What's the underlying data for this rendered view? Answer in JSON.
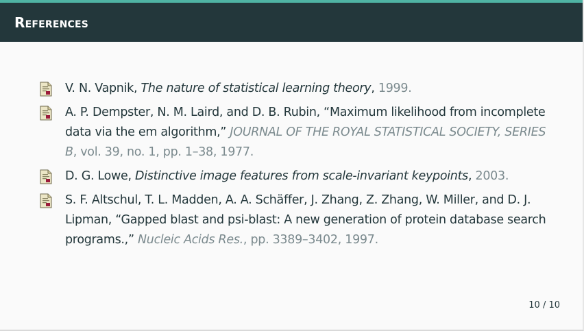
{
  "header": {
    "title": "References"
  },
  "references": [
    {
      "authors": "V. N. Vapnik,",
      "title": "The nature of statistical learning theory",
      "sep": ",",
      "details": "1999."
    },
    {
      "authors": "A. P. Dempster, N. M. Laird, and D. B. Rubin, “Maximum likelihood from incomplete data via the em algorithm,”",
      "venue": "JOURNAL OF THE ROYAL STATISTICAL SOCIETY, SERIES B",
      "details": ", vol. 39, no. 1, pp. 1–38, 1977."
    },
    {
      "authors": "D. G. Lowe,",
      "title": "Distinctive image features from scale-invariant keypoints",
      "sep": ",",
      "details": "2003."
    },
    {
      "authors": "S. F. Altschul, T. L. Madden, A. A. Schäffer, J. Zhang, Z. Zhang, W. Miller, and D. J. Lipman, “Gapped blast and psi-blast: A new generation of protein database search programs.,”",
      "venue": "Nucleic Acids Res.",
      "details": ", pp. 3389–3402, 1997."
    }
  ],
  "footer": {
    "page": "10 / 10"
  },
  "icons": [
    "document-icon"
  ],
  "colors": {
    "header_bg": "#23373b",
    "accent": "#4fb3a4",
    "text": "#23373b",
    "muted": "#7b8a8e"
  }
}
